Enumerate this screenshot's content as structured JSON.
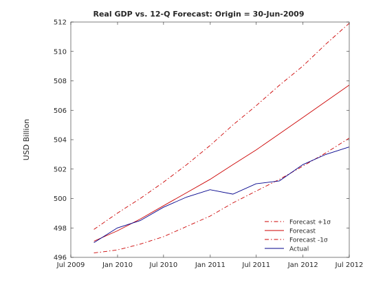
{
  "chart_data": {
    "type": "line",
    "title": "Real GDP vs. 12-Q Forecast: Origin = 30-Jun-2009",
    "xlabel": "",
    "ylabel": "USD Billion",
    "xlim": [
      "2009-07-01",
      "2012-07-01"
    ],
    "ylim": [
      496,
      512
    ],
    "x_ticks": [
      {
        "date": "2009-07-01",
        "label": "Jul 2009"
      },
      {
        "date": "2010-01-01",
        "label": "Jan 2010"
      },
      {
        "date": "2010-07-01",
        "label": "Jul 2010"
      },
      {
        "date": "2011-01-01",
        "label": "Jan 2011"
      },
      {
        "date": "2011-07-01",
        "label": "Jul 2011"
      },
      {
        "date": "2012-01-01",
        "label": "Jan 2012"
      },
      {
        "date": "2012-07-01",
        "label": "Jul 2012"
      }
    ],
    "y_ticks": [
      496,
      498,
      500,
      502,
      504,
      506,
      508,
      510,
      512
    ],
    "grid": false,
    "legend_position": "bottom-right",
    "x": [
      "2009-09-30",
      "2009-12-31",
      "2010-03-31",
      "2010-06-30",
      "2010-09-30",
      "2010-12-31",
      "2011-03-31",
      "2011-06-30",
      "2011-09-30",
      "2011-12-31",
      "2012-03-31",
      "2012-06-30"
    ],
    "series": [
      {
        "name": "Forecast +1σ",
        "color": "#cc0000",
        "style": "dash-dot",
        "values": [
          497.9,
          499.0,
          500.0,
          501.1,
          502.3,
          503.6,
          505.0,
          506.3,
          507.7,
          509.0,
          510.5,
          511.9
        ]
      },
      {
        "name": "Forecast",
        "color": "#cc0000",
        "style": "solid",
        "values": [
          497.1,
          497.8,
          498.6,
          499.5,
          500.4,
          501.3,
          502.3,
          503.3,
          504.4,
          505.5,
          506.6,
          507.7
        ]
      },
      {
        "name": "Forecast -1σ",
        "color": "#cc0000",
        "style": "dash-dot",
        "values": [
          496.3,
          496.5,
          496.9,
          497.4,
          498.1,
          498.8,
          499.7,
          500.5,
          501.3,
          502.2,
          503.1,
          504.1
        ]
      },
      {
        "name": "Actual",
        "color": "#00008b",
        "style": "solid",
        "values": [
          497.0,
          498.0,
          498.5,
          499.4,
          500.1,
          500.6,
          500.3,
          501.0,
          501.2,
          502.3,
          503.0,
          503.5
        ]
      }
    ]
  }
}
